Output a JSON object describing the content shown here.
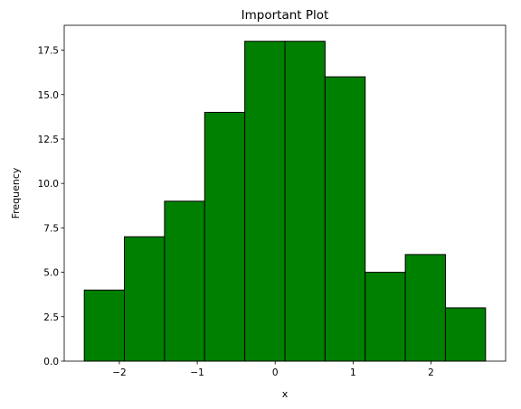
{
  "chart_data": {
    "type": "bar",
    "subtype": "histogram",
    "title": "Important Plot",
    "xlabel": "x",
    "ylabel": "Frequency",
    "bin_edges": [
      -2.45,
      -1.935,
      -1.42,
      -0.905,
      -0.39,
      0.125,
      0.64,
      1.155,
      1.67,
      2.185,
      2.7
    ],
    "values": [
      4,
      7,
      9,
      14,
      18,
      18,
      16,
      5,
      6,
      3
    ],
    "xlim": [
      -2.7075,
      2.9575
    ],
    "ylim": [
      0,
      18.9
    ],
    "xticks": [
      -2,
      -1,
      0,
      1,
      2
    ],
    "xtick_labels": [
      "−2",
      "−1",
      "0",
      "1",
      "2"
    ],
    "yticks": [
      0,
      2.5,
      5,
      7.5,
      10,
      12.5,
      15,
      17.5
    ],
    "ytick_labels": [
      "0.0",
      "2.5",
      "5.0",
      "7.5",
      "10.0",
      "12.5",
      "15.0",
      "17.5"
    ],
    "bar_color": "#008000",
    "edge_color": "#000000",
    "grid": false,
    "legend": "none"
  }
}
